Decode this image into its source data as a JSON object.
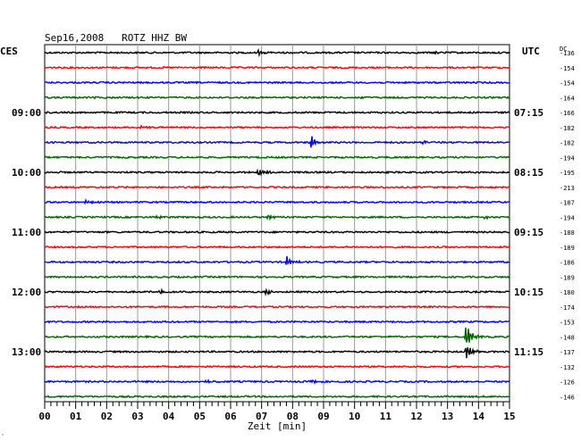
{
  "chart_data": {
    "type": "line",
    "title": "Sep16,2008   ROTZ HHZ BW",
    "xlabel": "Zeit [min]",
    "left_timezone": "CES",
    "right_timezone": "UTC",
    "dc_label": "DC",
    "x": [
      "00",
      "01",
      "02",
      "03",
      "04",
      "05",
      "06",
      "07",
      "08",
      "09",
      "10",
      "11",
      "12",
      "13",
      "14",
      "15"
    ],
    "xlim": [
      0,
      15
    ],
    "trace_colors": [
      "#000000",
      "#ff0000",
      "#0000ff",
      "#006400"
    ],
    "left_time_labels": [
      {
        "trace": 4,
        "label": "09:00"
      },
      {
        "trace": 8,
        "label": "10:00"
      },
      {
        "trace": 12,
        "label": "11:00"
      },
      {
        "trace": 16,
        "label": "12:00"
      },
      {
        "trace": 20,
        "label": "13:00"
      }
    ],
    "right_time_labels": [
      {
        "trace": 4,
        "label": "07:15"
      },
      {
        "trace": 8,
        "label": "08:15"
      },
      {
        "trace": 12,
        "label": "09:15"
      },
      {
        "trace": 16,
        "label": "10:15"
      },
      {
        "trace": 20,
        "label": "11:15"
      }
    ],
    "dc_offsets": [
      "-136",
      "-154",
      "-154",
      "-164",
      "-166",
      "-182",
      "-182",
      "-194",
      "-195",
      "-213",
      "-187",
      "-194",
      "-188",
      "-189",
      "-186",
      "-189",
      "-180",
      "-174",
      "-153",
      "-148",
      "-137",
      "-132",
      "-126",
      "-146"
    ],
    "events": [
      {
        "trace": 0,
        "minute": 6.9,
        "amplitude": 3
      },
      {
        "trace": 0,
        "minute": 12.6,
        "amplitude": 2
      },
      {
        "trace": 3,
        "minute": 1.6,
        "amplitude": 2
      },
      {
        "trace": 3,
        "minute": 10.2,
        "amplitude": 2
      },
      {
        "trace": 5,
        "minute": 3.1,
        "amplitude": 2
      },
      {
        "trace": 6,
        "minute": 8.6,
        "amplitude": 8
      },
      {
        "trace": 6,
        "minute": 12.2,
        "amplitude": 2
      },
      {
        "trace": 8,
        "minute": 6.9,
        "amplitude": 6
      },
      {
        "trace": 10,
        "minute": 1.3,
        "amplitude": 2
      },
      {
        "trace": 11,
        "minute": 3.6,
        "amplitude": 3
      },
      {
        "trace": 11,
        "minute": 7.2,
        "amplitude": 3
      },
      {
        "trace": 11,
        "minute": 14.2,
        "amplitude": 3
      },
      {
        "trace": 14,
        "minute": 7.8,
        "amplitude": 7
      },
      {
        "trace": 16,
        "minute": 3.7,
        "amplitude": 3
      },
      {
        "trace": 16,
        "minute": 7.1,
        "amplitude": 5
      },
      {
        "trace": 19,
        "minute": 13.6,
        "amplitude": 16
      },
      {
        "trace": 20,
        "minute": 13.6,
        "amplitude": 10
      },
      {
        "trace": 22,
        "minute": 5.2,
        "amplitude": 2
      },
      {
        "trace": 22,
        "minute": 8.6,
        "amplitude": 2
      }
    ]
  }
}
